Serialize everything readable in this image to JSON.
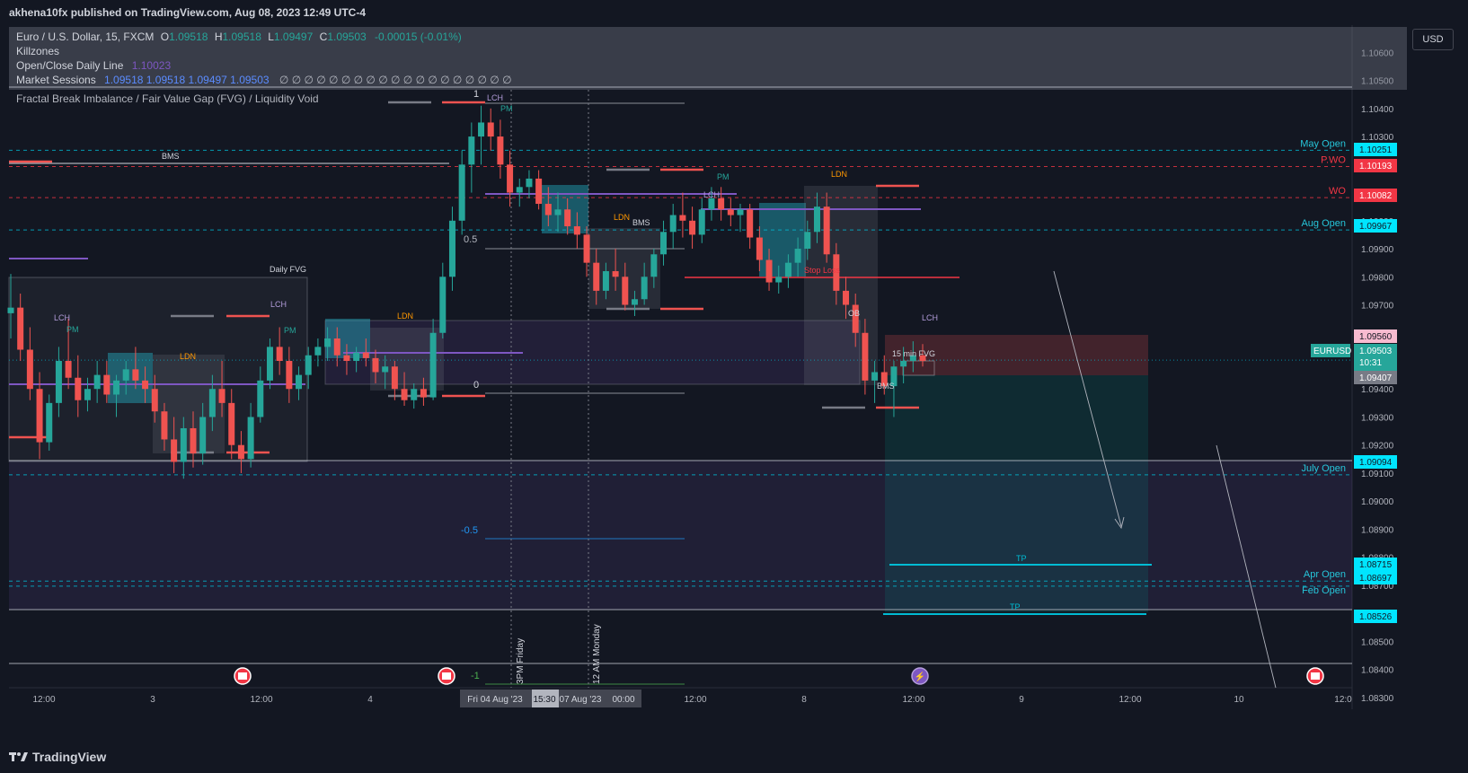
{
  "header": {
    "publisher": "akhena10fx published on TradingView.com, Aug 08, 2023 12:49 UTC-4"
  },
  "legend": {
    "symbol": "Euro / U.S. Dollar, 15, FXCM",
    "o_label": "O",
    "o": "1.09518",
    "h_label": "H",
    "h": "1.09518",
    "l_label": "L",
    "l": "1.09497",
    "c_label": "C",
    "c": "1.09503",
    "change": "-0.00015 (-0.01%)",
    "killzones": "Killzones",
    "daily_line": "Open/Close Daily Line",
    "daily_line_value": "1.10023",
    "sessions": "Market Sessions",
    "sessions_values": "1.09518  1.09518  1.09497  1.09503",
    "sessions_zeros": "∅ ∅ ∅ ∅ ∅ ∅ ∅ ∅ ∅ ∅ ∅ ∅ ∅ ∅ ∅ ∅ ∅ ∅ ∅",
    "fvg_indicator": "Fractal Break Imbalance / Fair Value Gap (FVG) / Liquidity Void"
  },
  "currency_button": "USD",
  "footer": {
    "brand": "TradingView"
  },
  "colors": {
    "background": "#131722",
    "up": "#26a69a",
    "down": "#ef5350",
    "cyan": "#00bcd4",
    "red_level": "#f23645",
    "session_orange": "#ff9800",
    "session_purple": "#b39ddb"
  },
  "chart_data": {
    "type": "candlestick",
    "symbol": "EURUSD",
    "timeframe": "15",
    "ylim": [
      1.0825,
      1.1065
    ],
    "y_ticks": [
      "1.10600",
      "1.10500",
      "1.10400",
      "1.10300",
      "1.10200",
      "1.10100",
      "1.10000",
      "1.09900",
      "1.09800",
      "1.09700",
      "1.09600",
      "1.09500",
      "1.09400",
      "1.09300",
      "1.09200",
      "1.09100",
      "1.09000",
      "1.08900",
      "1.08800",
      "1.08700",
      "1.08600",
      "1.08500",
      "1.08400",
      "1.08300"
    ],
    "x_ticks": [
      "12:00",
      "3",
      "12:00",
      "4",
      "Fri 04 Aug '23",
      "15:30",
      "07 Aug '23",
      "00:00",
      "12:00",
      "8",
      "12:00",
      "9",
      "12:00",
      "10",
      "12:0"
    ],
    "price_badges": [
      {
        "label": "",
        "value": "1.10251",
        "style": "cyan"
      },
      {
        "label": "",
        "value": "1.10193",
        "style": "red"
      },
      {
        "label": "",
        "value": "1.10082",
        "style": "red"
      },
      {
        "label": "",
        "value": "1.09967",
        "style": "cyan"
      },
      {
        "label": "",
        "value": "1.09560",
        "style": "pink"
      },
      {
        "label": "EURUSD",
        "value": "1.09503",
        "extra": "10:31",
        "style": "teal"
      },
      {
        "label": "",
        "value": "1.09407",
        "style": "gray"
      },
      {
        "label": "",
        "value": "1.09094",
        "style": "cyan"
      },
      {
        "label": "",
        "value": "1.08715",
        "style": "cyan"
      },
      {
        "label": "",
        "value": "1.08697",
        "style": "cyan"
      },
      {
        "label": "",
        "value": "1.08526",
        "style": "cyan"
      }
    ],
    "level_labels": [
      {
        "text": "May Open",
        "price": 1.10251
      },
      {
        "text": "P.WO",
        "price": 1.10193
      },
      {
        "text": "WO",
        "price": 1.10082
      },
      {
        "text": "Aug Open",
        "price": 1.09967
      },
      {
        "text": "July Open",
        "price": 1.09094
      },
      {
        "text": "Apr Open",
        "price": 1.08715
      },
      {
        "text": "Feb Open",
        "price": 1.08697
      }
    ],
    "annotations": {
      "bms": "BMS",
      "daily_fvg": "Daily FVG",
      "lch": "LCH",
      "pm": "PM",
      "ldn": "LDN",
      "fib_1": "1",
      "fib_05": "0.5",
      "fib_0": "0",
      "fib_m05": "-0.5",
      "fib_m1": "-1",
      "stop_loss": "Stop Loss",
      "ob": "OB",
      "fvg_15m": "15 min FVG",
      "tp": "TP",
      "friday_label": "3PM Friday",
      "monday_label": "12 AM Monday"
    },
    "candles": [
      [
        1.0967,
        1.0981,
        1.0958,
        1.0969
      ],
      [
        1.0969,
        1.0974,
        1.095,
        1.0954
      ],
      [
        1.0954,
        1.0962,
        1.0936,
        1.094
      ],
      [
        1.094,
        1.0946,
        1.0915,
        1.0921
      ],
      [
        1.0921,
        1.0938,
        1.0918,
        1.0935
      ],
      [
        1.0935,
        1.0955,
        1.093,
        1.095
      ],
      [
        1.095,
        1.0965,
        1.094,
        1.0944
      ],
      [
        1.0944,
        1.0952,
        1.093,
        1.0936
      ],
      [
        1.0936,
        1.0944,
        1.0932,
        1.094
      ],
      [
        1.094,
        1.095,
        1.0935,
        1.0945
      ],
      [
        1.0945,
        1.095,
        1.0935,
        1.0938
      ],
      [
        1.0938,
        1.0945,
        1.093,
        1.0943
      ],
      [
        1.0943,
        1.095,
        1.0938,
        1.0947
      ],
      [
        1.0947,
        1.0955,
        1.094,
        1.0943
      ],
      [
        1.0943,
        1.0948,
        1.0935,
        1.094
      ],
      [
        1.094,
        1.0945,
        1.0928,
        1.0932
      ],
      [
        1.0932,
        1.0935,
        1.0918,
        1.0922
      ],
      [
        1.0922,
        1.093,
        1.091,
        1.0914
      ],
      [
        1.0914,
        1.093,
        1.0908,
        1.0926
      ],
      [
        1.0926,
        1.0932,
        1.0912,
        1.0917
      ],
      [
        1.0917,
        1.0935,
        1.0913,
        1.093
      ],
      [
        1.093,
        1.0945,
        1.0925,
        1.094
      ],
      [
        1.094,
        1.095,
        1.093,
        1.0935
      ],
      [
        1.0935,
        1.094,
        1.0915,
        1.092
      ],
      [
        1.092,
        1.0925,
        1.091,
        1.0915
      ],
      [
        1.0915,
        1.0935,
        1.0912,
        1.093
      ],
      [
        1.093,
        1.0948,
        1.0928,
        1.0943
      ],
      [
        1.0943,
        1.0958,
        1.094,
        1.0955
      ],
      [
        1.0955,
        1.0962,
        1.0945,
        1.095
      ],
      [
        1.095,
        1.0955,
        1.0935,
        1.094
      ],
      [
        1.094,
        1.0948,
        1.0936,
        1.0945
      ],
      [
        1.0945,
        1.0955,
        1.094,
        1.0952
      ],
      [
        1.0952,
        1.0958,
        1.0948,
        1.0955
      ],
      [
        1.0955,
        1.0962,
        1.095,
        1.0958
      ],
      [
        1.0958,
        1.0962,
        1.0948,
        1.0952
      ],
      [
        1.0952,
        1.0956,
        1.0945,
        1.095
      ],
      [
        1.095,
        1.0955,
        1.0946,
        1.0953
      ],
      [
        1.0953,
        1.0958,
        1.0948,
        1.0951
      ],
      [
        1.0951,
        1.0954,
        1.0942,
        1.0946
      ],
      [
        1.0946,
        1.0952,
        1.094,
        1.0948
      ],
      [
        1.0948,
        1.095,
        1.0936,
        1.094
      ],
      [
        1.094,
        1.0946,
        1.0934,
        1.0936
      ],
      [
        1.0936,
        1.0942,
        1.0933,
        1.094
      ],
      [
        1.094,
        1.0944,
        1.0934,
        1.0937
      ],
      [
        1.0937,
        1.0965,
        1.0936,
        1.096
      ],
      [
        1.096,
        1.0985,
        1.0958,
        1.098
      ],
      [
        1.098,
        1.1005,
        1.0975,
        1.1
      ],
      [
        1.1,
        1.1025,
        1.0995,
        1.102
      ],
      [
        1.102,
        1.1035,
        1.101,
        1.103
      ],
      [
        1.103,
        1.1041,
        1.102,
        1.1035
      ],
      [
        1.1035,
        1.104,
        1.1025,
        1.103
      ],
      [
        1.103,
        1.1036,
        1.1015,
        1.102
      ],
      [
        1.102,
        1.1025,
        1.1005,
        1.101
      ],
      [
        1.101,
        1.1015,
        1.1005,
        1.1012
      ],
      [
        1.1012,
        1.1018,
        1.1008,
        1.1015
      ],
      [
        1.1015,
        1.1018,
        1.1004,
        1.1006
      ],
      [
        1.1006,
        1.1012,
        1.0998,
        1.1002
      ],
      [
        1.1002,
        1.101,
        1.0996,
        1.1004
      ],
      [
        1.1004,
        1.1008,
        1.0995,
        1.0998
      ],
      [
        1.0998,
        1.1003,
        1.099,
        1.0995
      ],
      [
        1.0995,
        1.0998,
        1.098,
        1.0985
      ],
      [
        1.0985,
        1.099,
        1.097,
        1.0975
      ],
      [
        1.0975,
        1.0985,
        1.0972,
        1.0982
      ],
      [
        1.0982,
        1.099,
        1.0975,
        1.098
      ],
      [
        1.098,
        1.0985,
        1.0968,
        1.097
      ],
      [
        1.097,
        1.0975,
        1.0966,
        1.0972
      ],
      [
        1.0972,
        1.0985,
        1.097,
        1.098
      ],
      [
        1.098,
        1.099,
        1.0976,
        1.0988
      ],
      [
        1.0988,
        1.1,
        1.0984,
        1.0996
      ],
      [
        1.0996,
        1.1006,
        1.099,
        1.1002
      ],
      [
        1.1002,
        1.101,
        1.0994,
        1.1
      ],
      [
        1.1,
        1.1005,
        1.099,
        1.0995
      ],
      [
        1.0995,
        1.1008,
        1.0992,
        1.1004
      ],
      [
        1.1004,
        1.1012,
        1.1,
        1.1008
      ],
      [
        1.1008,
        1.1012,
        1.1,
        1.1004
      ],
      [
        1.1004,
        1.1008,
        1.0998,
        1.1002
      ],
      [
        1.1002,
        1.1006,
        1.0996,
        1.1004
      ],
      [
        1.1004,
        1.1006,
        1.099,
        1.0994
      ],
      [
        1.0994,
        1.0998,
        1.0982,
        1.0986
      ],
      [
        1.0986,
        1.099,
        1.0975,
        1.0978
      ],
      [
        1.0978,
        1.0984,
        1.0974,
        1.098
      ],
      [
        1.098,
        1.0988,
        1.0976,
        1.0985
      ],
      [
        1.0985,
        1.0994,
        1.098,
        1.099
      ],
      [
        1.099,
        1.1,
        1.0986,
        1.0996
      ],
      [
        1.0996,
        1.101,
        1.0992,
        1.1005
      ],
      [
        1.1005,
        1.101,
        1.0985,
        1.0988
      ],
      [
        1.0988,
        1.0992,
        1.097,
        1.0975
      ],
      [
        1.0975,
        1.098,
        1.0965,
        1.097
      ],
      [
        1.097,
        1.0974,
        1.0955,
        1.096
      ],
      [
        1.096,
        1.0965,
        1.0938,
        1.0943
      ],
      [
        1.0943,
        1.095,
        1.0935,
        1.0946
      ],
      [
        1.0946,
        1.0952,
        1.0938,
        1.0941
      ],
      [
        1.0941,
        1.095,
        1.093,
        1.0948
      ],
      [
        1.0948,
        1.0955,
        1.0942,
        1.095
      ],
      [
        1.095,
        1.0957,
        1.0946,
        1.0952
      ],
      [
        1.0952,
        1.0956,
        1.0948,
        1.095
      ]
    ]
  }
}
